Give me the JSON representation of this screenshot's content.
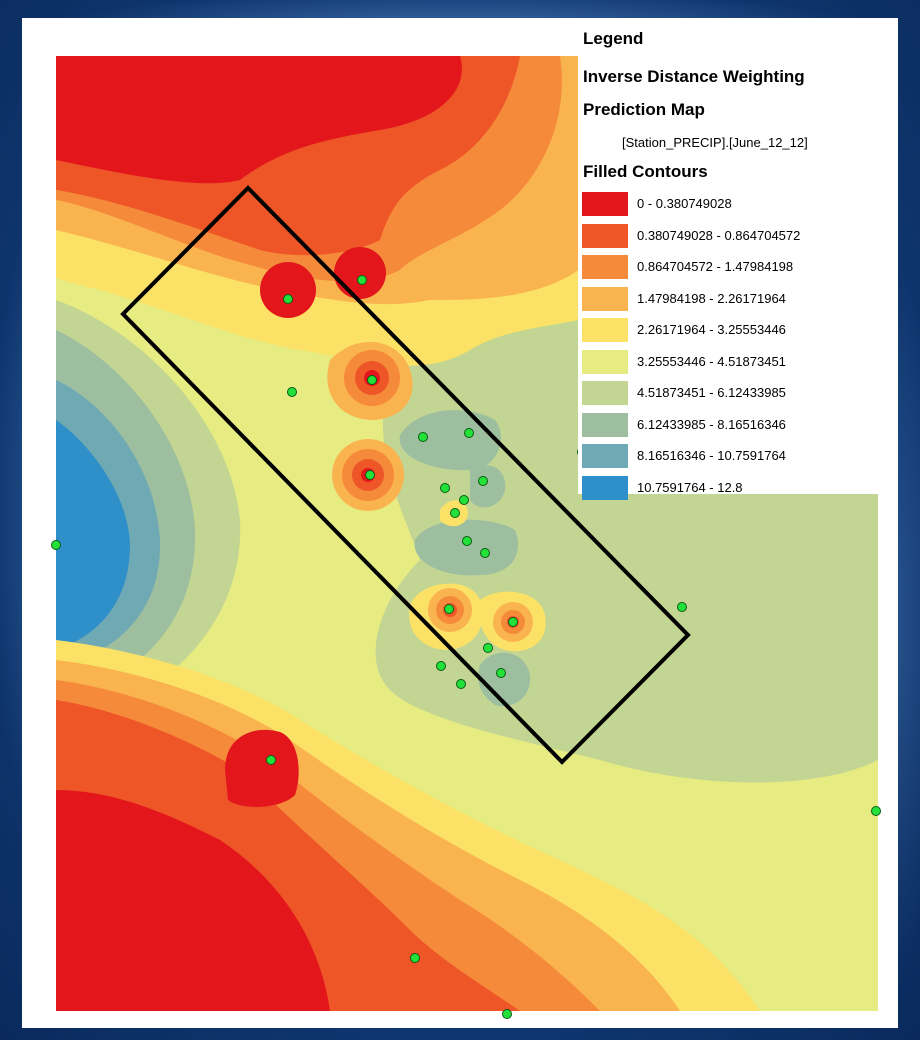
{
  "legend": {
    "title": "Legend",
    "layer_name": "Inverse Distance Weighting",
    "layer_subtitle": "Prediction Map",
    "field_label": "[Station_PRECIP].[June_12_12]",
    "group_title": "Filled Contours",
    "classes": [
      {
        "label": "0 - 0.380749028",
        "color": "#e3161c"
      },
      {
        "label": "0.380749028 - 0.864704572",
        "color": "#ee5628"
      },
      {
        "label": "0.864704572 - 1.47984198",
        "color": "#f58a3a"
      },
      {
        "label": "1.47984198 - 2.26171964",
        "color": "#f9b450"
      },
      {
        "label": "2.26171964 - 3.25553446",
        "color": "#fbe266"
      },
      {
        "label": "3.25553446 - 4.51873451",
        "color": "#e6eb82"
      },
      {
        "label": "4.51873451 - 6.12433985",
        "color": "#c3d593"
      },
      {
        "label": "6.12433985 - 8.16516346",
        "color": "#9dbf9f"
      },
      {
        "label": "8.16516346 - 10.7591764",
        "color": "#6fa9b3"
      },
      {
        "label": "10.7591764 - 12.8",
        "color": "#2f8fc8"
      }
    ]
  },
  "map": {
    "station_color": "#22e23a",
    "boundary_color": "#000000",
    "station_count": 28
  }
}
